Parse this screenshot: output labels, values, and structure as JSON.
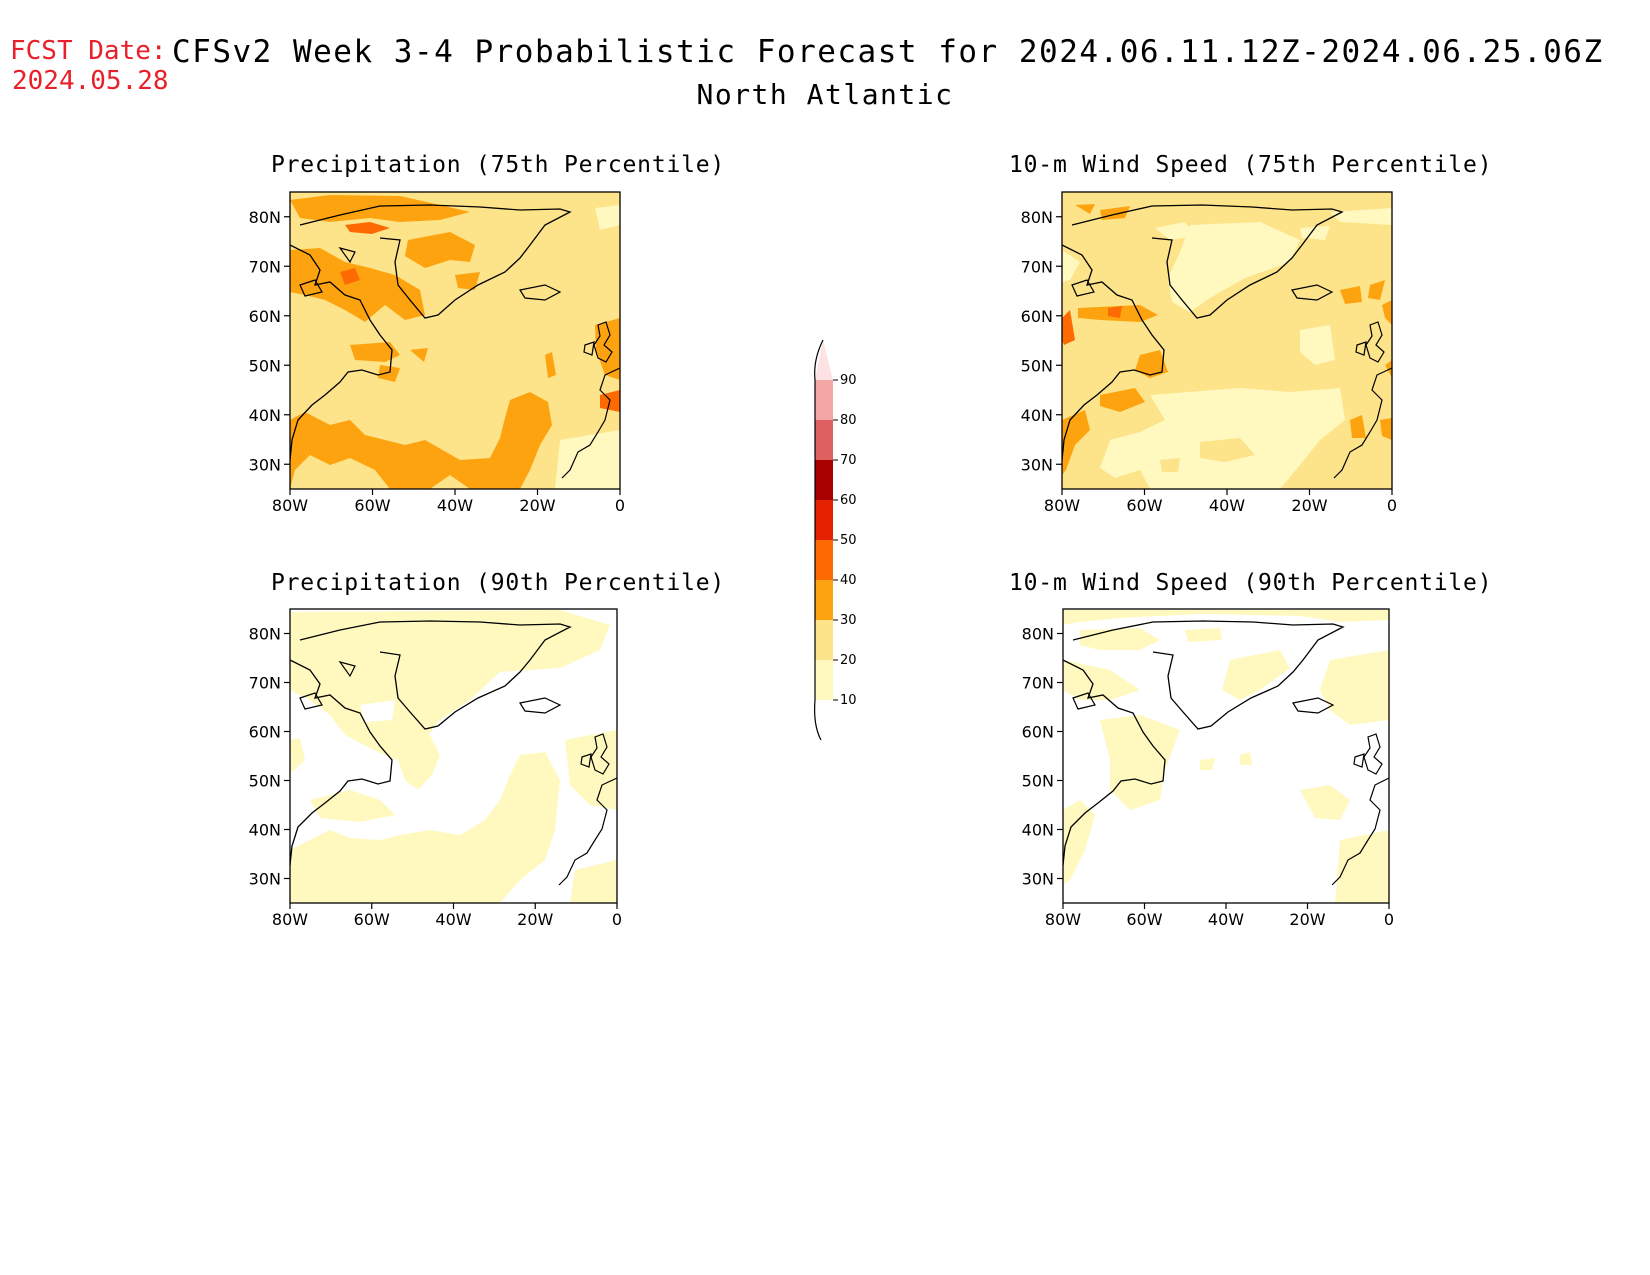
{
  "header": {
    "fcst_label": "FCST Date:",
    "fcst_date": "2024.05.28",
    "title": "CFSv2 Week 3-4 Probabilistic Forecast for 2024.06.11.12Z-2024.06.25.06Z",
    "subtitle": "North Atlantic"
  },
  "panels": [
    {
      "title": "Precipitation (75th Percentile)",
      "base_color": "#fde38a"
    },
    {
      "title": "10-m Wind Speed (75th Percentile)",
      "base_color": "#fde38a"
    },
    {
      "title": "Precipitation (90th Percentile)",
      "base_color": "#ffffff"
    },
    {
      "title": "10-m Wind Speed (90th Percentile)",
      "base_color": "#ffffff"
    }
  ],
  "axes": {
    "lat_labels": [
      "80N",
      "70N",
      "60N",
      "50N",
      "40N",
      "30N"
    ],
    "lon_labels": [
      "80W",
      "60W",
      "40W",
      "20W",
      "0"
    ]
  },
  "colorbar": {
    "levels": [
      "10",
      "20",
      "30",
      "40",
      "50",
      "60",
      "70",
      "80",
      "90"
    ],
    "colors": [
      "#fff9c0",
      "#fde38a",
      "#fea310",
      "#fe6a02",
      "#e42200",
      "#a90000",
      "#de6060",
      "#f4a6a6",
      "#fce2e2"
    ]
  }
}
